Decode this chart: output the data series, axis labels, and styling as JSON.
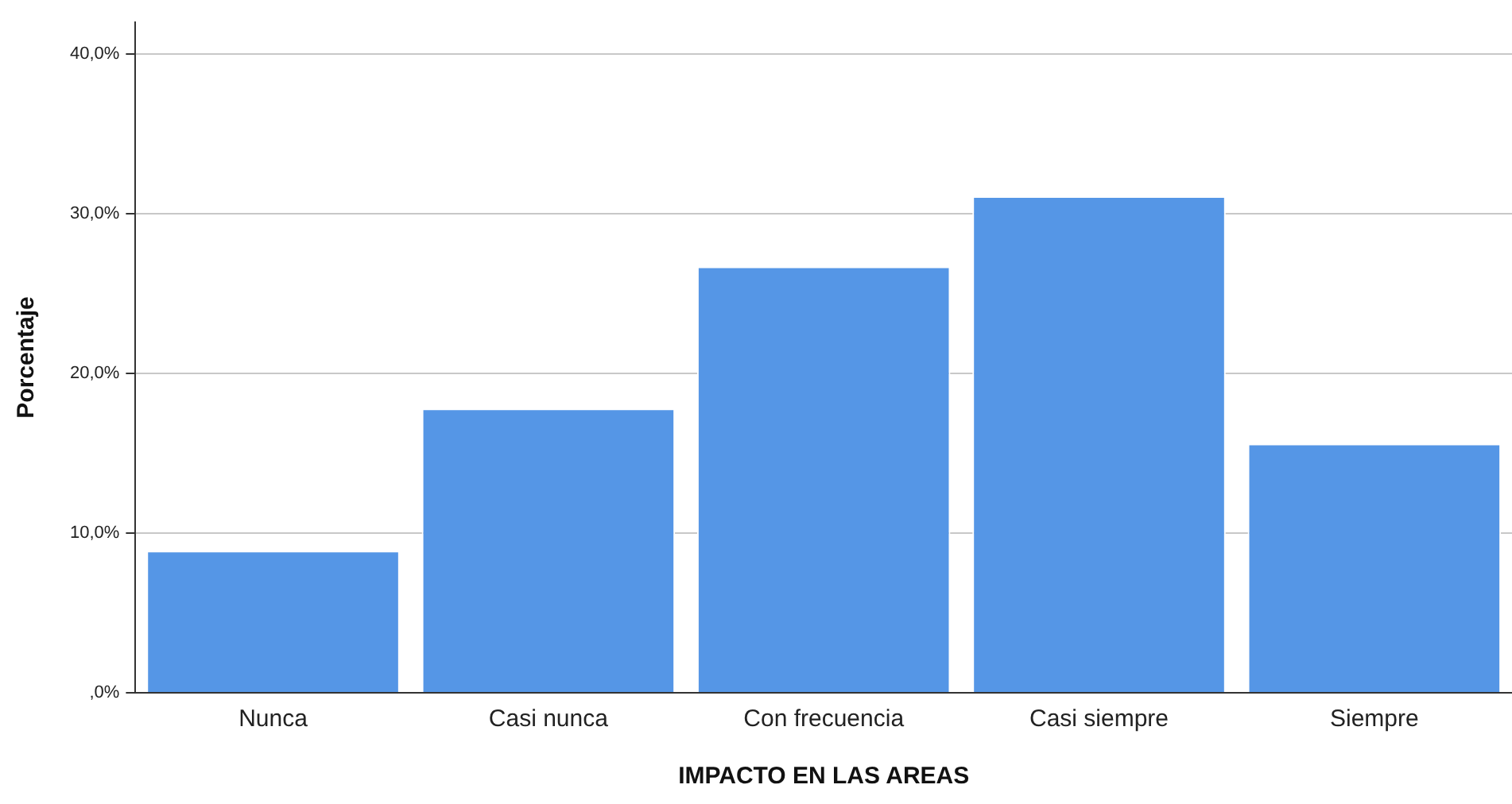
{
  "chart_data": {
    "type": "bar",
    "xlabel": "IMPACTO EN LAS AREAS",
    "ylabel": "Porcentaje",
    "categories": [
      "Nunca",
      "Casi nunca",
      "Con frecuencia",
      "Casi siempre",
      "Siempre"
    ],
    "values": [
      8.9,
      17.8,
      26.7,
      31.1,
      15.6
    ],
    "color": "#5596e6",
    "ylim": [
      0,
      42
    ],
    "yticks": [
      {
        "value": 0,
        "label": ",0%"
      },
      {
        "value": 10,
        "label": "10,0%"
      },
      {
        "value": 20,
        "label": "20,0%"
      },
      {
        "value": 30,
        "label": "30,0%"
      },
      {
        "value": 40,
        "label": "40,0%"
      }
    ],
    "grid": "y",
    "legend": false
  }
}
